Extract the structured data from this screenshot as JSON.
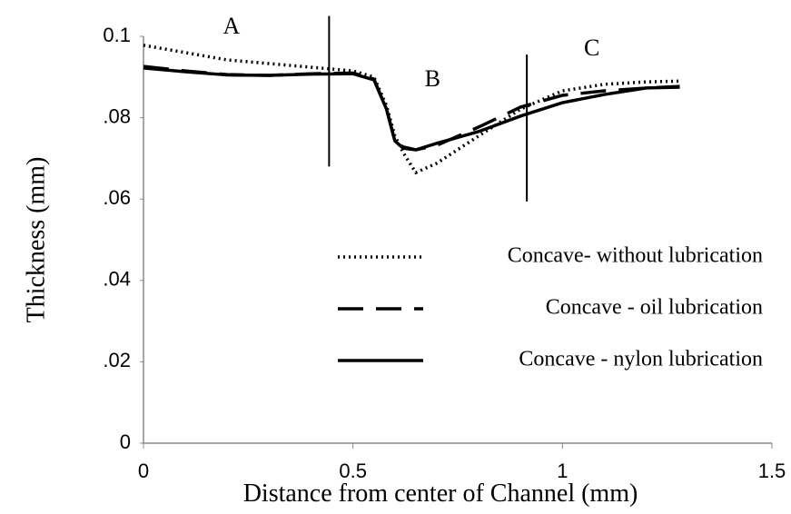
{
  "chart_data": {
    "type": "line",
    "x_label": "Distance from center of Channel (mm)",
    "y_label": "Thickness (mm)",
    "x": [
      0,
      0.1,
      0.2,
      0.3,
      0.4,
      0.5,
      0.55,
      0.58,
      0.6,
      0.62,
      0.65,
      0.7,
      0.8,
      0.9,
      1.0,
      1.1,
      1.2,
      1.28
    ],
    "series": [
      {
        "name": "Concave- without lubrication",
        "color": "#000000",
        "dash": "dotted",
        "values": [
          0.0978,
          0.096,
          0.0942,
          0.0933,
          0.0924,
          0.0915,
          0.09,
          0.083,
          0.0755,
          0.0714,
          0.0665,
          0.0688,
          0.0755,
          0.0821,
          0.0866,
          0.0882,
          0.0888,
          0.089
        ]
      },
      {
        "name": "Concave - oil lubrication",
        "color": "#000000",
        "dash": "dashed",
        "values": [
          0.0926,
          0.0915,
          0.0906,
          0.0904,
          0.0908,
          0.091,
          0.0895,
          0.0821,
          0.0743,
          0.0728,
          0.0721,
          0.0732,
          0.0777,
          0.0826,
          0.0855,
          0.0866,
          0.0873,
          0.0877
        ]
      },
      {
        "name": "Concave - nylon lubrication",
        "color": "#000000",
        "dash": "solid",
        "values": [
          0.0922,
          0.0913,
          0.0905,
          0.0904,
          0.0907,
          0.0908,
          0.0893,
          0.0821,
          0.0743,
          0.0725,
          0.0721,
          0.0737,
          0.0766,
          0.0804,
          0.0837,
          0.0857,
          0.0873,
          0.0875
        ]
      }
    ],
    "xlim": [
      0,
      1.5
    ],
    "xticks": [
      0,
      0.5,
      1,
      1.5
    ],
    "ylim": [
      0,
      0.1
    ],
    "yticks": [
      0,
      {
        "value": 0.02,
        "label": ".02"
      },
      {
        "value": 0.04,
        "label": ".04"
      },
      {
        "value": 0.06,
        "label": ".06"
      },
      {
        "value": 0.08,
        "label": ".08"
      },
      0.1
    ],
    "grid": false,
    "legend": "right",
    "dividers": [
      {
        "x": 0.443,
        "y": [
          0.068,
          0.105
        ]
      },
      {
        "x": 0.915,
        "y": [
          0.0594,
          0.0955
        ]
      }
    ],
    "annotations": [
      {
        "text": "A",
        "x": 0.21,
        "y": 0.102
      },
      {
        "text": "B",
        "x": 0.69,
        "y": 0.089
      },
      {
        "text": "C",
        "x": 1.07,
        "y": 0.0967
      }
    ]
  }
}
